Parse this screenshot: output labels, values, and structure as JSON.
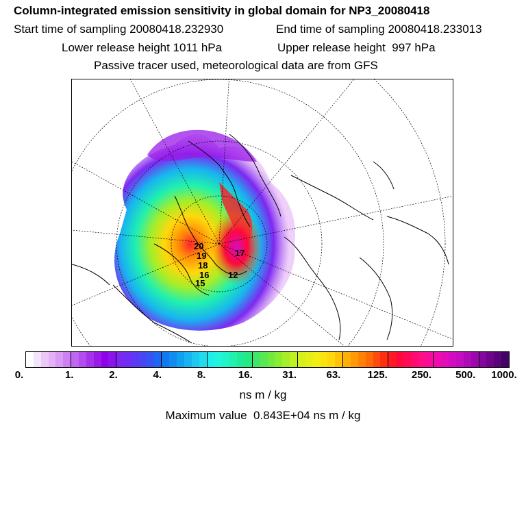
{
  "header": {
    "title": "Column-integrated emission sensitivity in global domain for NP3_20080418",
    "start_time": "Start time of sampling 20080418.232930",
    "end_time": "End time of sampling 20080418.233013",
    "lower_release": "Lower release height 1011 hPa",
    "upper_release": "Upper release height  997 hPa",
    "tracer_note": "Passive tracer used, meteorological data are from GFS"
  },
  "map": {
    "region": "north-polar-stereographic",
    "contour_labels": [
      "20",
      "19",
      "18",
      "16",
      "15",
      "12",
      "17"
    ],
    "colors": {
      "coast": "#000000",
      "grid": "#000000",
      "background": "#ffffff"
    }
  },
  "colorbar": {
    "tick_labels": [
      "0.",
      "1.",
      "2.",
      "4.",
      "8.",
      "16.",
      "31.",
      "63.",
      "125.",
      "250.",
      "500.",
      "1000."
    ],
    "colors": [
      "#ffffff",
      "#f4e4fb",
      "#ecc8f8",
      "#e4b0f6",
      "#d89af4",
      "#cc80f2",
      "#c066f0",
      "#b24cee",
      "#a533ec",
      "#9a1aea",
      "#9000e8",
      "#8a14ee",
      "#7d28f0",
      "#6e2ef4",
      "#5c3af4",
      "#4a46f4",
      "#3454f4",
      "#2066f2",
      "#1078f0",
      "#0e8cf0",
      "#10a0f0",
      "#18b4f0",
      "#1ec8f0",
      "#20dcee",
      "#20eeec",
      "#20f4dc",
      "#20f4c8",
      "#20f0b0",
      "#20ec98",
      "#28e880",
      "#40e668",
      "#58e854",
      "#70ea40",
      "#8cec30",
      "#a6ee28",
      "#c0f020",
      "#d6f01c",
      "#e6f018",
      "#f2ee14",
      "#fae410",
      "#ffd80c",
      "#ffc408",
      "#ffb006",
      "#ff9a04",
      "#ff8204",
      "#ff6a08",
      "#ff4c0c",
      "#ff3012",
      "#ff1a24",
      "#ff0a3a",
      "#ff0a54",
      "#ff0c6e",
      "#ff0e88",
      "#f80c9c",
      "#f00cac",
      "#e40cb8",
      "#d40cc0",
      "#c40cc0",
      "#b00ab8",
      "#9a08ac",
      "#84069c",
      "#6e048a",
      "#580478",
      "#420266"
    ],
    "units": "ns m / kg",
    "max_value": "Maximum value  0.843E+04 ns m / kg"
  }
}
